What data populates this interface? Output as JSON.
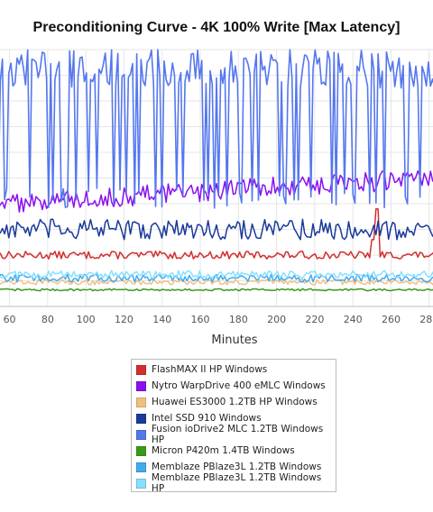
{
  "chart_data": {
    "type": "line",
    "title": "Preconditioning Curve - 4K 100% Write [Max Latency]",
    "xlabel": "Minutes",
    "ylabel": "",
    "x_ticks": [
      "60",
      "80",
      "100",
      "120",
      "140",
      "160",
      "180",
      "200",
      "220",
      "240",
      "260",
      "280"
    ],
    "xlim": [
      55,
      282
    ],
    "ylim": [
      0,
      100
    ],
    "grid": true,
    "legend_position": "bottom",
    "series": [
      {
        "name": "FlashMAX II HP Windows",
        "color": "#d32f2f",
        "base": 20,
        "noise": 1.5,
        "spikes": [
          [
            253,
            38
          ],
          [
            250,
            26
          ]
        ]
      },
      {
        "name": "Nytro WarpDrive 400 eMLC Windows",
        "color": "#8b10f0",
        "base": 44,
        "noise": 4,
        "spikes": []
      },
      {
        "name": "Huawei ES3000 1.2TB HP Windows",
        "color": "#f0c080",
        "base": 9.5,
        "noise": 1,
        "spikes": []
      },
      {
        "name": "Intel SSD 910 Windows",
        "color": "#1a3a9a",
        "base": 30,
        "noise": 4,
        "spikes": []
      },
      {
        "name": "Fusion ioDrive2 MLC 1.2TB Windows HP",
        "color": "#5577ee",
        "base": 60,
        "noise": 8,
        "spikes": []
      },
      {
        "name": "Micron P420m 1.4TB Windows",
        "color": "#3a9a1a",
        "base": 6.5,
        "noise": 0.4,
        "spikes": []
      },
      {
        "name": "Memblaze PBlaze3L 1.2TB Windows",
        "color": "#44aaee",
        "base": 11,
        "noise": 1.5,
        "spikes": []
      },
      {
        "name": "Memblaze PBlaze3L 1.2TB Windows HP",
        "color": "#88e0ff",
        "base": 12.5,
        "noise": 1.5,
        "spikes": []
      }
    ]
  }
}
